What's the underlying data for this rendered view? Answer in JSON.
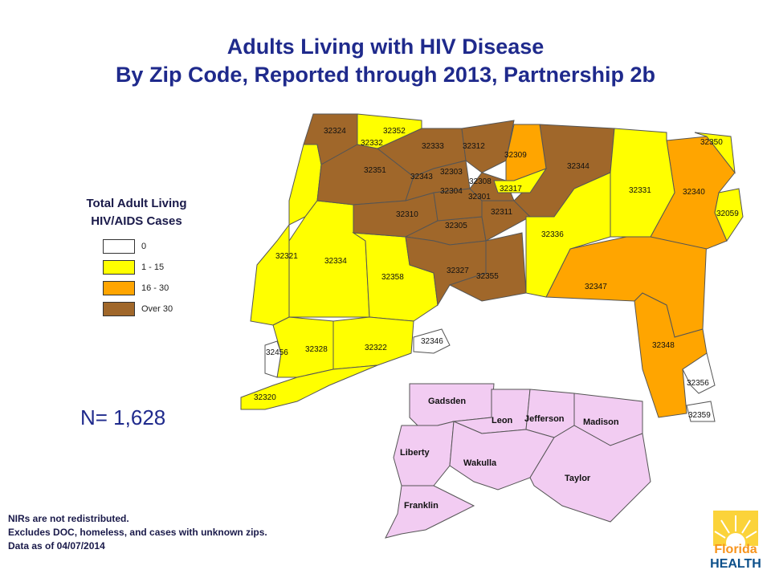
{
  "title": {
    "line1": "Adults Living with HIV Disease",
    "line2": "By Zip Code, Reported through 2013, Partnership 2b"
  },
  "legend": {
    "title_line1": "Total Adult Living",
    "title_line2": "HIV/AIDS Cases",
    "items": [
      {
        "label": "0",
        "color": "#ffffff"
      },
      {
        "label": "1 - 15",
        "color": "#ffff00"
      },
      {
        "label": "16 - 30",
        "color": "#ffa500"
      },
      {
        "label": "Over 30",
        "color": "#a0672a"
      }
    ]
  },
  "count_label": "N= 1,628",
  "notes": [
    "NIRs are not redistributed.",
    "Excludes DOC, homeless, and cases with unknown zips.",
    "Data as of 04/07/2014"
  ],
  "zip_labels": {
    "z32324": "32324",
    "z32352": "32352",
    "z32332": "32332",
    "z32333": "32333",
    "z32312": "32312",
    "z32309": "32309",
    "z32350": "32350",
    "z32344": "32344",
    "z32351": "32351",
    "z32343": "32343",
    "z32303": "32303",
    "z32308": "32308",
    "z32317": "32317",
    "z32304": "32304",
    "z32301": "32301",
    "z32331": "32331",
    "z32340": "32340",
    "z32059": "32059",
    "z32310": "32310",
    "z32311": "32311",
    "z32305": "32305",
    "z32336": "32336",
    "z32321": "32321",
    "z32334": "32334",
    "z32358": "32358",
    "z32327": "32327",
    "z32355": "32355",
    "z32347": "32347",
    "z32456": "32456",
    "z32328": "32328",
    "z32322": "32322",
    "z32346": "32346",
    "z32348": "32348",
    "z32320": "32320",
    "z32356": "32356",
    "z32359": "32359"
  },
  "inset_counties": {
    "gadsden": "Gadsden",
    "leon": "Leon",
    "jefferson": "Jefferson",
    "madison": "Madison",
    "liberty": "Liberty",
    "wakulla": "Wakulla",
    "taylor": "Taylor",
    "franklin": "Franklin"
  },
  "logo": {
    "line1": "Florida",
    "line2": "HEALTH"
  },
  "colors": {
    "title": "#1f2a8c",
    "zero": "#ffffff",
    "low": "#ffff00",
    "mid": "#ffa500",
    "high": "#a0672a",
    "inset": "#f2ccf2"
  }
}
